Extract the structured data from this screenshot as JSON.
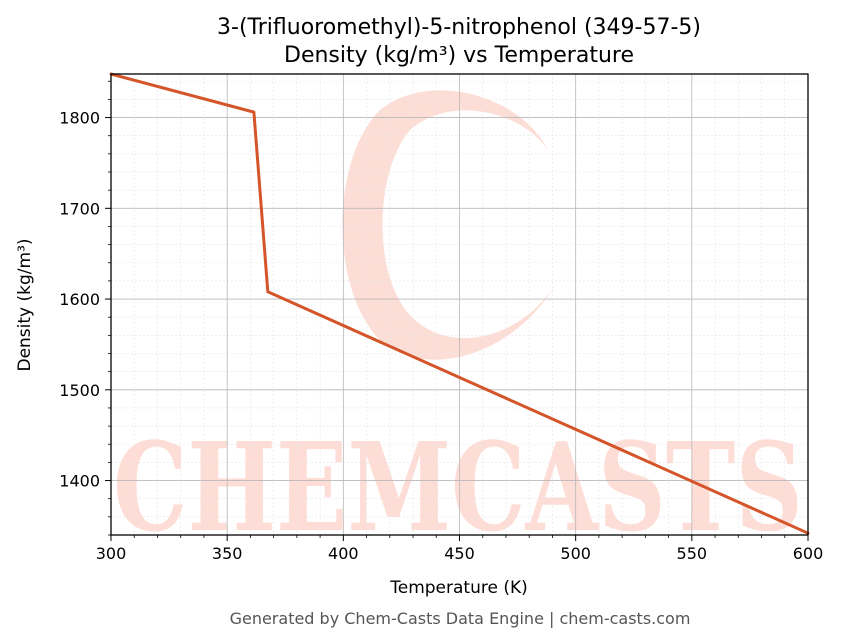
{
  "chart_data": {
    "type": "line",
    "title_line1": "3-(Trifluoromethyl)-5-nitrophenol (349-57-5)",
    "title_line2": "Density (kg/m³) vs Temperature",
    "xlabel": "Temperature (K)",
    "ylabel": "Density (kg/m³)",
    "xlim": [
      300,
      600
    ],
    "ylim": [
      1340,
      1848
    ],
    "xticks": [
      300,
      350,
      400,
      450,
      500,
      550,
      600
    ],
    "yticks": [
      1400,
      1500,
      1600,
      1700,
      1800
    ],
    "grid": true,
    "series": [
      {
        "color": "#d4552a",
        "x": [
          300,
          361.5,
          367.5,
          600
        ],
        "y": [
          1848,
          1806,
          1608,
          1342
        ]
      }
    ]
  },
  "watermark": {
    "text": "CHEMCASTS",
    "color": "#fdd8cf"
  },
  "footer": "Generated by Chem-Casts Data Engine | chem-casts.com"
}
